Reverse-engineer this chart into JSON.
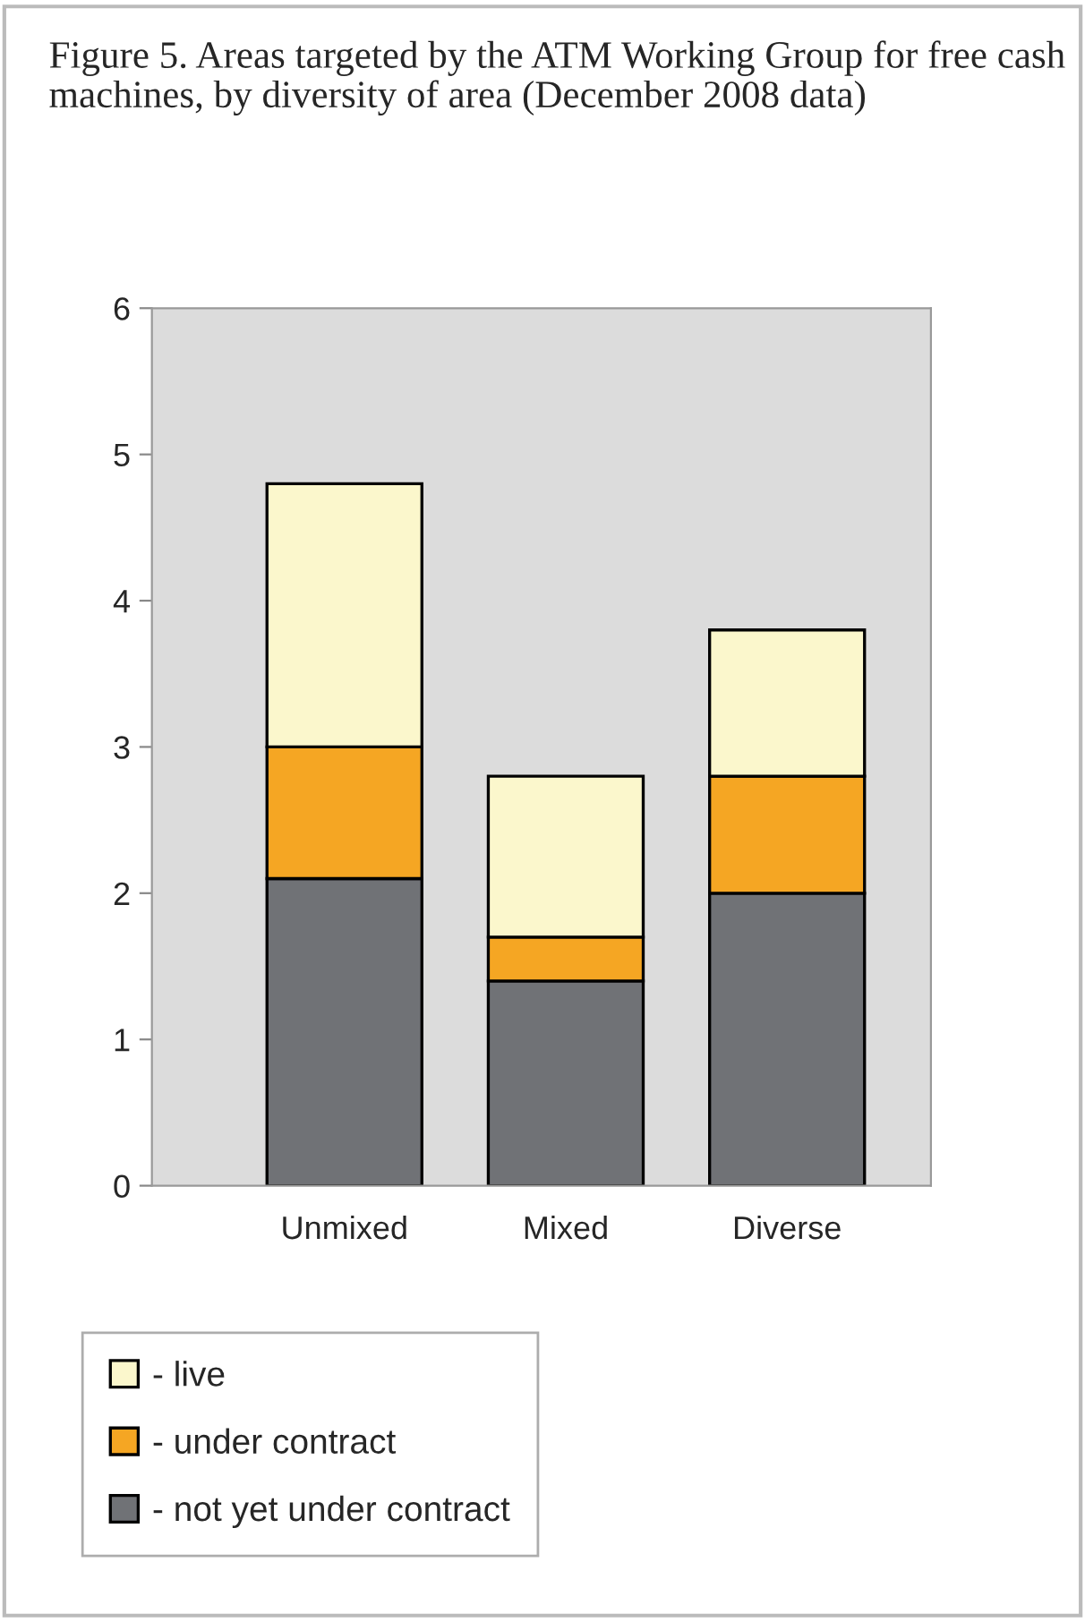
{
  "chart_data": {
    "type": "bar",
    "title": "Figure 5. Areas targeted by the ATM Working Group for free cash machines, by diversity of area (December 2008 data)",
    "categories": [
      "Unmixed",
      "Mixed",
      "Diverse"
    ],
    "stacked": true,
    "series": [
      {
        "name": "- not yet under contract",
        "color": "#707276",
        "values": [
          2.1,
          1.4,
          2.0
        ]
      },
      {
        "name": "- under contract",
        "color": "#f5a623",
        "values": [
          0.9,
          0.3,
          0.8
        ]
      },
      {
        "name": "- live",
        "color": "#fbf7cc",
        "values": [
          1.8,
          1.1,
          1.0
        ]
      }
    ],
    "ylim": [
      0,
      6
    ],
    "yticks": [
      0,
      1,
      2,
      3,
      4,
      5,
      6
    ],
    "grid": false,
    "legend": "bottom left"
  }
}
